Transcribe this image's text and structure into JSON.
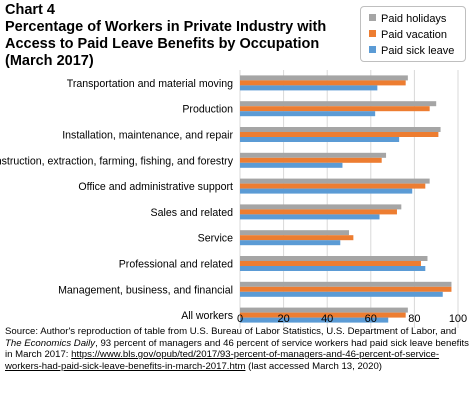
{
  "title_lines": [
    "Chart 4",
    "Percentage of Workers in Private Industry with",
    "Access to Paid Leave Benefits by Occupation",
    "(March 2017)"
  ],
  "legend": [
    {
      "label": "Paid holidays",
      "color": "#a5a5a5"
    },
    {
      "label": "Paid vacation",
      "color": "#ed7d31"
    },
    {
      "label": "Paid sick leave",
      "color": "#5b9bd5"
    }
  ],
  "source": {
    "prefix": "Source: Author's reproduction of table from U.S. Bureau of Labor Statistics, U.S. Department of Labor, and ",
    "publication": "The Economics Daily",
    "middle": ", 93 percent of managers and 46 percent of service workers had paid sick leave benefits in March 2017: ",
    "link": "https://www.bls.gov/opub/ted/2017/93-percent-of-managers-and-46-percent-of-service-workers-had-paid-sick-leave-benefits-in-march-2017.htm",
    "suffix": " (last accessed March 13, 2020)"
  },
  "chart_data": {
    "type": "bar",
    "orientation": "horizontal",
    "categories": [
      "Transportation and material moving",
      "Production",
      "Installation, maintenance, and repair",
      "Construction, extraction, farming, fishing, and forestry",
      "Office and administrative support",
      "Sales and related",
      "Service",
      "Professional and related",
      "Management, business, and financial",
      "All workers"
    ],
    "series": [
      {
        "name": "Paid holidays",
        "color": "#a5a5a5",
        "values": [
          77,
          90,
          92,
          67,
          87,
          74,
          50,
          86,
          97,
          77
        ]
      },
      {
        "name": "Paid vacation",
        "color": "#ed7d31",
        "values": [
          76,
          87,
          91,
          65,
          85,
          72,
          52,
          83,
          97,
          76
        ]
      },
      {
        "name": "Paid sick leave",
        "color": "#5b9bd5",
        "values": [
          63,
          62,
          73,
          47,
          79,
          64,
          46,
          85,
          93,
          68
        ]
      }
    ],
    "xlim": [
      0,
      100
    ],
    "xticks": [
      0,
      20,
      40,
      60,
      80,
      100
    ],
    "grid": true,
    "legend_position": "top-right"
  }
}
